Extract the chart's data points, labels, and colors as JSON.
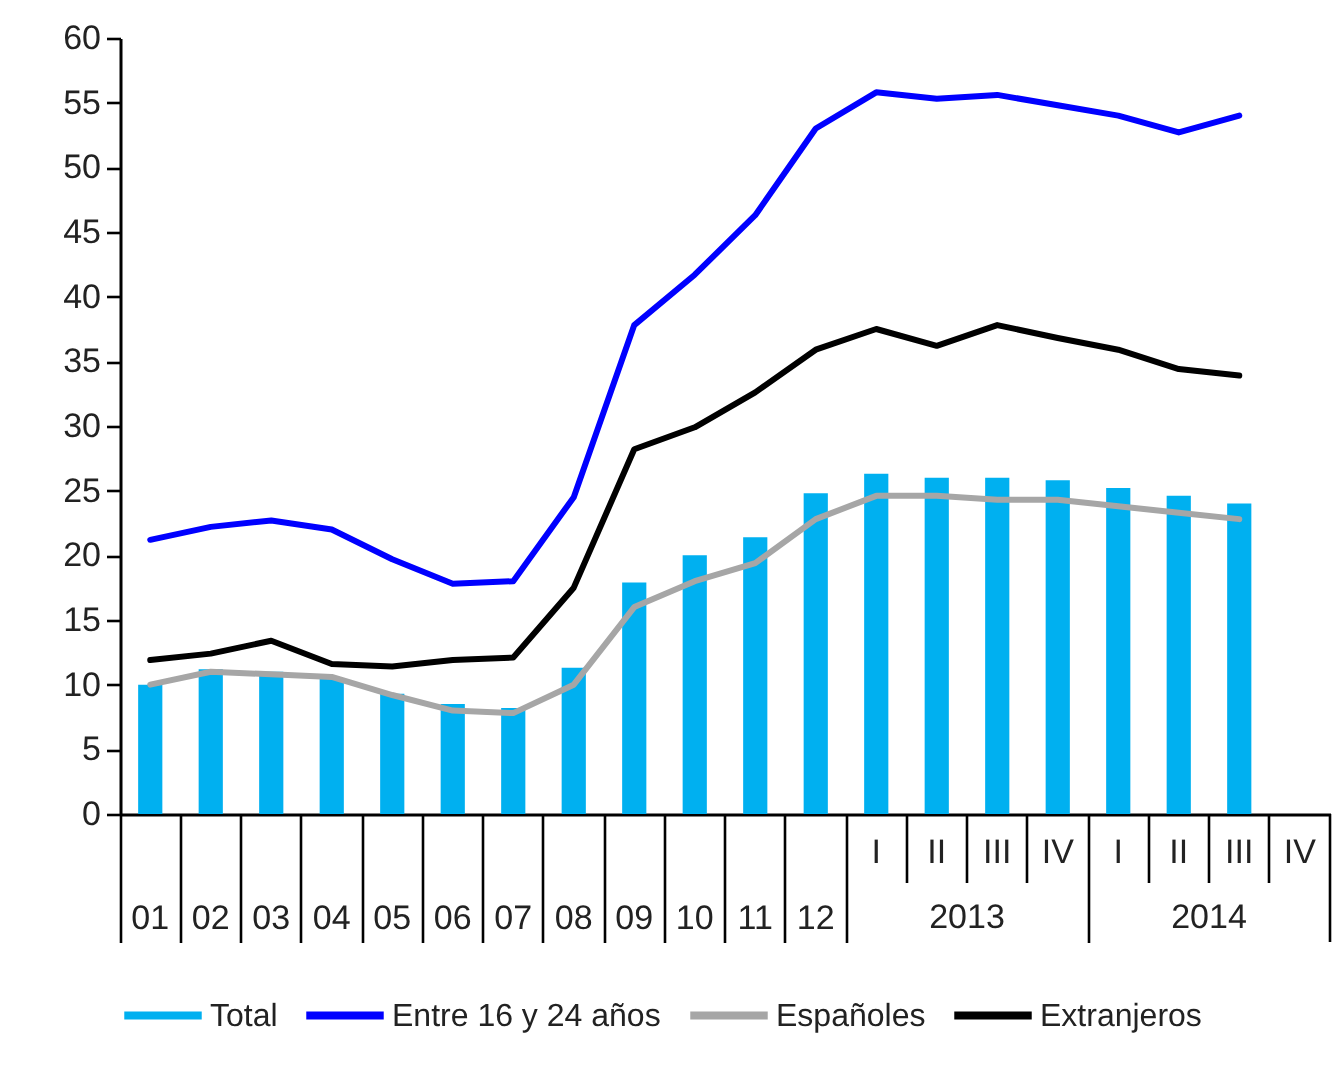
{
  "chart_data": {
    "type": "bar",
    "categories": [
      "01",
      "02",
      "03",
      "04",
      "05",
      "06",
      "07",
      "08",
      "09",
      "10",
      "11",
      "12",
      "I",
      "II",
      "III",
      "IV",
      "I",
      "II",
      "III",
      "IV"
    ],
    "annotations": [
      "2013",
      "2014"
    ],
    "series": [
      {
        "name": "Total",
        "color": "#00b0f0",
        "values": [
          10.0,
          11.2,
          11.0,
          10.5,
          9.3,
          8.5,
          8.2,
          11.3,
          17.9,
          20.0,
          21.4,
          24.8,
          26.3,
          26.0,
          26.0,
          25.8,
          25.2,
          24.6,
          24.0,
          null
        ]
      },
      {
        "name": "Entre 16 y 24 años",
        "type": "line",
        "color": "#0000ff",
        "values": [
          21.2,
          22.2,
          22.7,
          22.0,
          19.7,
          17.8,
          18.0,
          24.5,
          37.8,
          41.7,
          46.3,
          53.0,
          55.8,
          55.3,
          55.6,
          54.8,
          54.0,
          52.7,
          54.0,
          null
        ]
      },
      {
        "name": "Españoles",
        "type": "line",
        "color": "#a6a6a6",
        "values": [
          10.0,
          11.0,
          10.8,
          10.6,
          9.2,
          8.0,
          7.8,
          10.0,
          16.0,
          18.0,
          19.4,
          22.8,
          24.6,
          24.6,
          24.3,
          24.3,
          23.8,
          23.3,
          22.8,
          null
        ]
      },
      {
        "name": "Extranjeros",
        "type": "line",
        "color": "#000000",
        "values": [
          11.9,
          12.4,
          13.4,
          11.6,
          11.4,
          11.9,
          12.1,
          17.5,
          28.2,
          29.9,
          32.6,
          35.9,
          37.5,
          36.2,
          37.8,
          36.8,
          35.9,
          34.4,
          33.9,
          null
        ]
      }
    ],
    "ylim": [
      0,
      60
    ],
    "yticks": [
      0,
      5,
      10,
      15,
      20,
      25,
      30,
      35,
      40,
      45,
      50,
      55,
      60
    ],
    "grid": false,
    "legend": "bottom"
  }
}
